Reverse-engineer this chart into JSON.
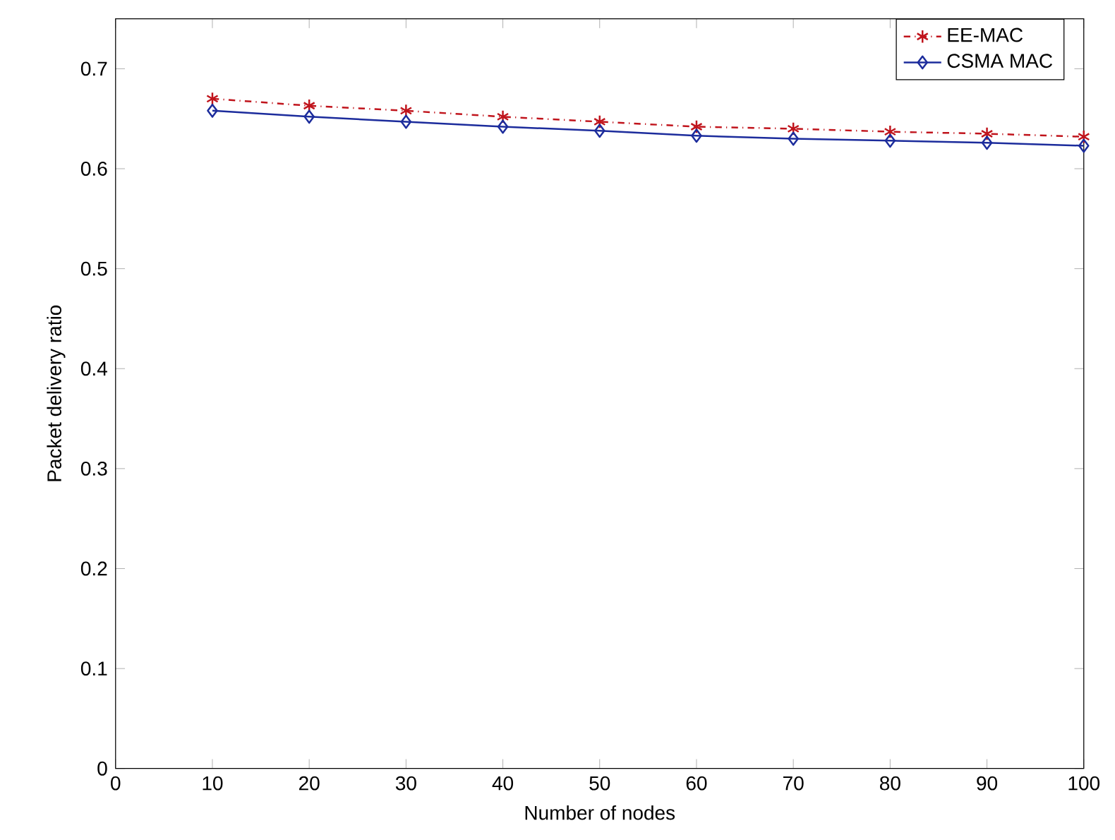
{
  "chart_data": {
    "type": "line",
    "xlabel": "Number of nodes",
    "ylabel": "Packet delivery ratio",
    "x": [
      10,
      20,
      30,
      40,
      50,
      60,
      70,
      80,
      90,
      100
    ],
    "series": [
      {
        "name": "EE-MAC",
        "color": "#c0141c",
        "values": [
          0.67,
          0.663,
          0.658,
          0.652,
          0.647,
          0.642,
          0.64,
          0.637,
          0.635,
          0.632
        ],
        "marker": "cross",
        "line_style": "dashdot"
      },
      {
        "name": "CSMA MAC",
        "color": "#1c2c9c",
        "values": [
          0.658,
          0.652,
          0.647,
          0.642,
          0.638,
          0.633,
          0.63,
          0.628,
          0.626,
          0.623
        ],
        "marker": "diamond",
        "line_style": "solid"
      }
    ],
    "xlim": [
      0,
      100
    ],
    "xticks": [
      0,
      10,
      20,
      30,
      40,
      50,
      60,
      70,
      80,
      90,
      100
    ],
    "ylim": [
      0,
      0.75
    ],
    "yticks": [
      0,
      0.1,
      0.2,
      0.3,
      0.4,
      0.5,
      0.6,
      0.7
    ],
    "grid": false,
    "legend": "top right"
  }
}
